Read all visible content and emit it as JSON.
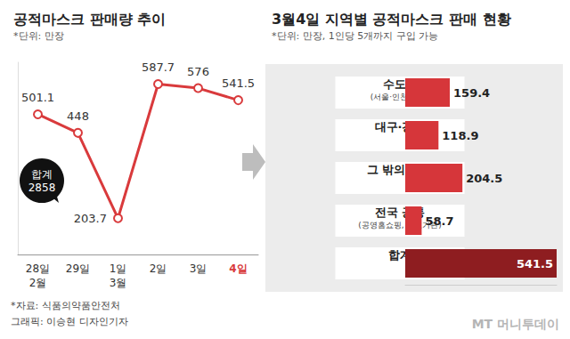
{
  "chart_data": [
    {
      "type": "line",
      "title": "공적마스크 판매량 추이",
      "subtitle": "*단위: 만장",
      "categories": [
        "28일\n2월",
        "29일",
        "1일\n3월",
        "2일",
        "3일",
        "4일"
      ],
      "values": [
        501.1,
        448,
        203.7,
        587.7,
        576,
        541.5
      ],
      "color": "#d93a3c",
      "marker": "circle",
      "ylim": [
        100,
        650
      ],
      "grid": false,
      "data_labels": true,
      "tick_labels": "x",
      "annotations": [
        {
          "text": "합계",
          "value": 2858
        }
      ]
    },
    {
      "type": "bar",
      "orientation": "horizontal",
      "title": "3월4일 지역별 공적마스크 판매 현황",
      "subtitle": "*단위: 만장, 1인당 5개까지 구입 가능",
      "categories": [
        "수도권\n(서울·인천·경기)",
        "대구·경북",
        "그 밖의 지역",
        "전국 공통\n(공영홈쇼핑, 의료기관)",
        "합계"
      ],
      "values": [
        159.4,
        118.9,
        204.5,
        58.7,
        541.5
      ],
      "colors": [
        "#d6363a",
        "#d6363a",
        "#d6363a",
        "#d6363a",
        "#8e1d20"
      ],
      "xlim": [
        0,
        541.5
      ],
      "grid": false,
      "data_labels": true,
      "tick_labels": "y"
    }
  ],
  "source": "*자료: 식품의약품안전처",
  "credit": "그래픽: 이승현 디자인기자",
  "watermark": "MT 머니투데이"
}
